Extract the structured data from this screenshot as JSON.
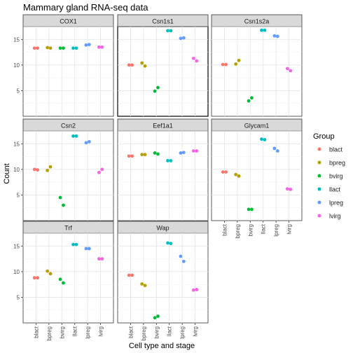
{
  "chart_data": {
    "type": "scatter",
    "title": "Mammary gland RNA-seq data",
    "xlabel": "Cell type and stage",
    "ylabel": "Count",
    "ylim": [
      0,
      17.5
    ],
    "yticks": [
      5,
      10,
      15
    ],
    "grid": true,
    "legend": {
      "title": "Group",
      "placement": "right",
      "entries": [
        {
          "name": "blact",
          "color": "#F8766D"
        },
        {
          "name": "bpreg",
          "color": "#B79F00"
        },
        {
          "name": "bvirg",
          "color": "#00BA38"
        },
        {
          "name": "llact",
          "color": "#00BFC4"
        },
        {
          "name": "lpreg",
          "color": "#619CFF"
        },
        {
          "name": "lvirg",
          "color": "#F564E3"
        }
      ]
    },
    "categories": [
      "blact",
      "bpreg",
      "bvirg",
      "llact",
      "lpreg",
      "lvirg"
    ],
    "facets": [
      {
        "name": "COX1",
        "points": {
          "blact": [
            13.3,
            13.3
          ],
          "bpreg": [
            13.4,
            13.3
          ],
          "bvirg": [
            13.3,
            13.3
          ],
          "llact": [
            13.3,
            13.3
          ],
          "lpreg": [
            13.9,
            14.0
          ],
          "lvirg": [
            13.5,
            13.5
          ]
        }
      },
      {
        "name": "Csn1s1",
        "highlighted": true,
        "points": {
          "blact": [
            10.0,
            10.0
          ],
          "bpreg": [
            10.4,
            9.8
          ],
          "bvirg": [
            4.9,
            5.6
          ],
          "llact": [
            16.7,
            16.7
          ],
          "lpreg": [
            15.2,
            15.3
          ],
          "lvirg": [
            11.3,
            10.8
          ]
        }
      },
      {
        "name": "Csn1s2a",
        "points": {
          "blact": [
            10.1,
            10.1
          ],
          "bpreg": [
            10.2,
            10.9
          ],
          "bvirg": [
            3.0,
            3.6
          ],
          "llact": [
            16.8,
            16.8
          ],
          "lpreg": [
            15.7,
            15.6
          ],
          "lvirg": [
            9.3,
            8.9
          ]
        }
      },
      {
        "name": "Csn2",
        "points": {
          "blact": [
            10.0,
            9.9
          ],
          "bpreg": [
            9.8,
            10.5
          ],
          "bvirg": [
            4.5,
            3.0
          ],
          "llact": [
            16.5,
            16.5
          ],
          "lpreg": [
            15.2,
            15.4
          ],
          "lvirg": [
            9.4,
            10.0
          ]
        }
      },
      {
        "name": "Eef1a1",
        "points": {
          "blact": [
            12.6,
            12.6
          ],
          "bpreg": [
            12.9,
            12.9
          ],
          "bvirg": [
            13.2,
            13.0
          ],
          "llact": [
            11.7,
            11.7
          ],
          "lpreg": [
            13.2,
            13.3
          ],
          "lvirg": [
            13.6,
            13.6
          ]
        }
      },
      {
        "name": "Glycam1",
        "points": {
          "blact": [
            9.5,
            9.5
          ],
          "bpreg": [
            9.0,
            8.7
          ],
          "bvirg": [
            2.2,
            2.2
          ],
          "llact": [
            15.9,
            15.8
          ],
          "lpreg": [
            14.1,
            13.6
          ],
          "lvirg": [
            6.2,
            6.1
          ]
        }
      },
      {
        "name": "Trf",
        "points": {
          "blact": [
            8.8,
            8.8
          ],
          "bpreg": [
            10.1,
            9.6
          ],
          "bvirg": [
            8.5,
            7.8
          ],
          "llact": [
            15.3,
            15.3
          ],
          "lpreg": [
            14.5,
            14.5
          ],
          "lvirg": [
            12.5,
            12.5
          ]
        }
      },
      {
        "name": "Wap",
        "points": {
          "blact": [
            9.3,
            9.3
          ],
          "bpreg": [
            7.6,
            7.3
          ],
          "bvirg": [
            1.0,
            1.3
          ],
          "llact": [
            15.6,
            15.5
          ],
          "lpreg": [
            13.0,
            12.0
          ],
          "lvirg": [
            6.4,
            6.5
          ]
        }
      }
    ]
  }
}
